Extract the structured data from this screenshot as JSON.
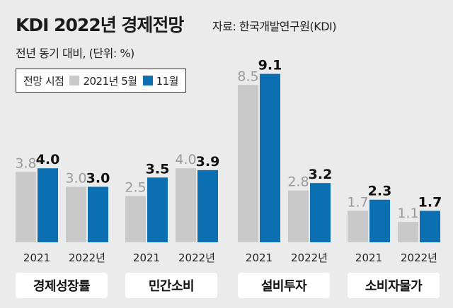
{
  "header": {
    "title": "KDI 2022년 경제전망",
    "source": "자료: 한국개발연구원(KDI)",
    "subtitle": "전년 동기 대비, (단위: %)"
  },
  "legend": {
    "label": "전망 시점",
    "items": [
      {
        "name": "2021년 5월",
        "color": "#c9c9c9"
      },
      {
        "name": "11월",
        "color": "#0b6fb1"
      }
    ]
  },
  "chart_data": {
    "type": "bar",
    "title": "KDI 2022년 경제전망",
    "ylabel": "전년 동기 대비, (단위: %)",
    "series_names": [
      "2021년 5월",
      "11월"
    ],
    "groups": [
      {
        "name": "경제성장률",
        "categories": [
          "2021",
          "2022년"
        ],
        "values": [
          [
            3.8,
            4.0
          ],
          [
            3.0,
            3.0
          ]
        ]
      },
      {
        "name": "민간소비",
        "categories": [
          "2021",
          "2022년"
        ],
        "values": [
          [
            2.5,
            3.5
          ],
          [
            4.0,
            3.9
          ]
        ]
      },
      {
        "name": "설비투자",
        "categories": [
          "2021",
          "2022년"
        ],
        "values": [
          [
            8.5,
            9.1
          ],
          [
            2.8,
            3.2
          ]
        ]
      },
      {
        "name": "소비자물가",
        "categories": [
          "2021",
          "2022년"
        ],
        "values": [
          [
            1.7,
            2.3
          ],
          [
            1.1,
            1.7
          ]
        ]
      }
    ]
  }
}
